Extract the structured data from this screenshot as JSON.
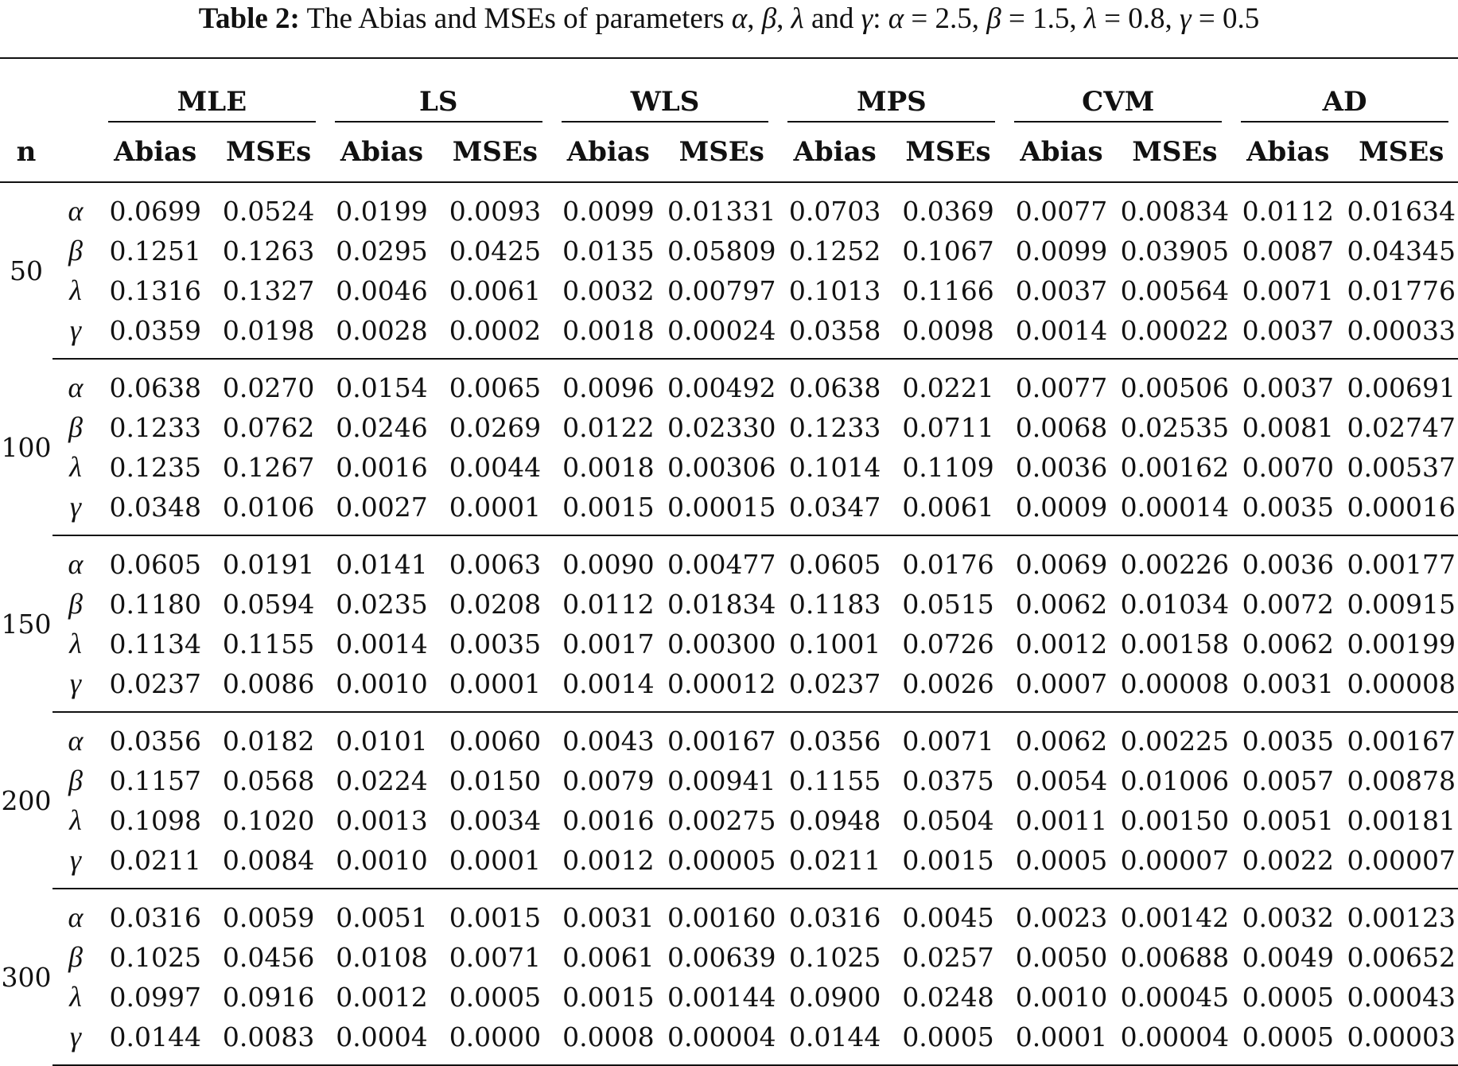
{
  "caption": {
    "label": "Table 2:",
    "text_pre": " The Abias and MSEs of parameters ",
    "p1": "α",
    "s1": ", ",
    "p2": "β",
    "s2": ", ",
    "p3": "λ",
    "s3": " and ",
    "p4": "γ",
    "s4": ": ",
    "p5": "α",
    "s5": " = 2.5, ",
    "p6": "β",
    "s6": " = 1.5, ",
    "p7": "λ",
    "s7": " = 0.8, ",
    "p8": "γ",
    "s8": " = 0.5"
  },
  "header": {
    "n_label": "n",
    "methods": [
      "MLE",
      "LS",
      "WLS",
      "MPS",
      "CVM",
      "AD"
    ],
    "sub": [
      "Abias",
      "MSEs",
      "Abias",
      "MSEs",
      "Abias",
      "MSEs",
      "Abias",
      "MSEs",
      "Abias",
      "MSEs",
      "Abias",
      "MSEs"
    ]
  },
  "groups": [
    {
      "n": "50",
      "rows": [
        {
          "param": "α",
          "values": [
            "0.0699",
            "0.0524",
            "0.0199",
            "0.0093",
            "0.0099",
            "0.01331",
            "0.0703",
            "0.0369",
            "0.0077",
            "0.00834",
            "0.0112",
            "0.01634"
          ]
        },
        {
          "param": "β",
          "values": [
            "0.1251",
            "0.1263",
            "0.0295",
            "0.0425",
            "0.0135",
            "0.05809",
            "0.1252",
            "0.1067",
            "0.0099",
            "0.03905",
            "0.0087",
            "0.04345"
          ]
        },
        {
          "param": "λ",
          "values": [
            "0.1316",
            "0.1327",
            "0.0046",
            "0.0061",
            "0.0032",
            "0.00797",
            "0.1013",
            "0.1166",
            "0.0037",
            "0.00564",
            "0.0071",
            "0.01776"
          ]
        },
        {
          "param": "γ",
          "values": [
            "0.0359",
            "0.0198",
            "0.0028",
            "0.0002",
            "0.0018",
            "0.00024",
            "0.0358",
            "0.0098",
            "0.0014",
            "0.00022",
            "0.0037",
            "0.00033"
          ]
        }
      ]
    },
    {
      "n": "100",
      "rows": [
        {
          "param": "α",
          "values": [
            "0.0638",
            "0.0270",
            "0.0154",
            "0.0065",
            "0.0096",
            "0.00492",
            "0.0638",
            "0.0221",
            "0.0077",
            "0.00506",
            "0.0037",
            "0.00691"
          ]
        },
        {
          "param": "β",
          "values": [
            "0.1233",
            "0.0762",
            "0.0246",
            "0.0269",
            "0.0122",
            "0.02330",
            "0.1233",
            "0.0711",
            "0.0068",
            "0.02535",
            "0.0081",
            "0.02747"
          ]
        },
        {
          "param": "λ",
          "values": [
            "0.1235",
            "0.1267",
            "0.0016",
            "0.0044",
            "0.0018",
            "0.00306",
            "0.1014",
            "0.1109",
            "0.0036",
            "0.00162",
            "0.0070",
            "0.00537"
          ]
        },
        {
          "param": "γ",
          "values": [
            "0.0348",
            "0.0106",
            "0.0027",
            "0.0001",
            "0.0015",
            "0.00015",
            "0.0347",
            "0.0061",
            "0.0009",
            "0.00014",
            "0.0035",
            "0.00016"
          ]
        }
      ]
    },
    {
      "n": "150",
      "rows": [
        {
          "param": "α",
          "values": [
            "0.0605",
            "0.0191",
            "0.0141",
            "0.0063",
            "0.0090",
            "0.00477",
            "0.0605",
            "0.0176",
            "0.0069",
            "0.00226",
            "0.0036",
            "0.00177"
          ]
        },
        {
          "param": "β",
          "values": [
            "0.1180",
            "0.0594",
            "0.0235",
            "0.0208",
            "0.0112",
            "0.01834",
            "0.1183",
            "0.0515",
            "0.0062",
            "0.01034",
            "0.0072",
            "0.00915"
          ]
        },
        {
          "param": "λ",
          "values": [
            "0.1134",
            "0.1155",
            "0.0014",
            "0.0035",
            "0.0017",
            "0.00300",
            "0.1001",
            "0.0726",
            "0.0012",
            "0.00158",
            "0.0062",
            "0.00199"
          ]
        },
        {
          "param": "γ",
          "values": [
            "0.0237",
            "0.0086",
            "0.0010",
            "0.0001",
            "0.0014",
            "0.00012",
            "0.0237",
            "0.0026",
            "0.0007",
            "0.00008",
            "0.0031",
            "0.00008"
          ]
        }
      ]
    },
    {
      "n": "200",
      "rows": [
        {
          "param": "α",
          "values": [
            "0.0356",
            "0.0182",
            "0.0101",
            "0.0060",
            "0.0043",
            "0.00167",
            "0.0356",
            "0.0071",
            "0.0062",
            "0.00225",
            "0.0035",
            "0.00167"
          ]
        },
        {
          "param": "β",
          "values": [
            "0.1157",
            "0.0568",
            "0.0224",
            "0.0150",
            "0.0079",
            "0.00941",
            "0.1155",
            "0.0375",
            "0.0054",
            "0.01006",
            "0.0057",
            "0.00878"
          ]
        },
        {
          "param": "λ",
          "values": [
            "0.1098",
            "0.1020",
            "0.0013",
            "0.0034",
            "0.0016",
            "0.00275",
            "0.0948",
            "0.0504",
            "0.0011",
            "0.00150",
            "0.0051",
            "0.00181"
          ]
        },
        {
          "param": "γ",
          "values": [
            "0.0211",
            "0.0084",
            "0.0010",
            "0.0001",
            "0.0012",
            "0.00005",
            "0.0211",
            "0.0015",
            "0.0005",
            "0.00007",
            "0.0022",
            "0.00007"
          ]
        }
      ]
    },
    {
      "n": "300",
      "rows": [
        {
          "param": "α",
          "values": [
            "0.0316",
            "0.0059",
            "0.0051",
            "0.0015",
            "0.0031",
            "0.00160",
            "0.0316",
            "0.0045",
            "0.0023",
            "0.00142",
            "0.0032",
            "0.00123"
          ]
        },
        {
          "param": "β",
          "values": [
            "0.1025",
            "0.0456",
            "0.0108",
            "0.0071",
            "0.0061",
            "0.00639",
            "0.1025",
            "0.0257",
            "0.0050",
            "0.00688",
            "0.0049",
            "0.00652"
          ]
        },
        {
          "param": "λ",
          "values": [
            "0.0997",
            "0.0916",
            "0.0012",
            "0.0005",
            "0.0015",
            "0.00144",
            "0.0900",
            "0.0248",
            "0.0010",
            "0.00045",
            "0.0005",
            "0.00043"
          ]
        },
        {
          "param": "γ",
          "values": [
            "0.0144",
            "0.0083",
            "0.0004",
            "0.0000",
            "0.0008",
            "0.00004",
            "0.0144",
            "0.0005",
            "0.0001",
            "0.00004",
            "0.0005",
            "0.00003"
          ]
        }
      ]
    }
  ]
}
